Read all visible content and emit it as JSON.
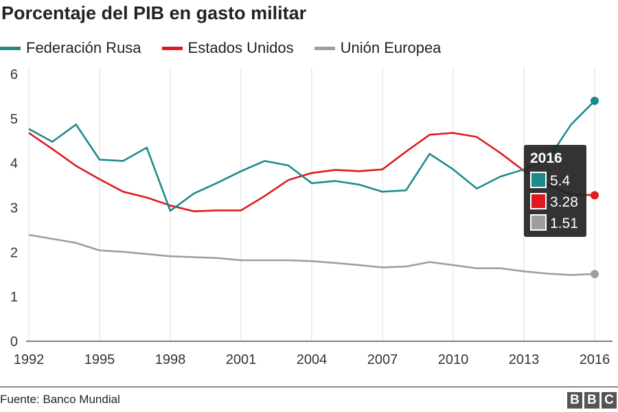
{
  "chart_data": {
    "type": "line",
    "title": "Porcentaje del PIB en gasto militar",
    "source": "Fuente: Banco Mundial",
    "logo": "BBC",
    "x_tick_labels": [
      "1992",
      "1995",
      "1998",
      "2001",
      "2004",
      "2007",
      "2010",
      "2013",
      "2016"
    ],
    "y_tick_labels": [
      "0",
      "1",
      "2",
      "3",
      "4",
      "5",
      "6"
    ],
    "xlim": [
      1992,
      2016
    ],
    "ylim": [
      0,
      6
    ],
    "grid": "vertical",
    "legend_position": "top",
    "series": [
      {
        "name": "Federación Rusa",
        "color": "#1d8a8a",
        "x": [
          1992,
          1993,
          1994,
          1995,
          1996,
          1997,
          1998,
          1999,
          2000,
          2001,
          2002,
          2003,
          2004,
          2005,
          2006,
          2007,
          2008,
          2009,
          2010,
          2011,
          2012,
          2013,
          2014,
          2015,
          2016
        ],
        "values": [
          4.77,
          4.48,
          4.87,
          4.08,
          4.05,
          4.35,
          2.93,
          3.32,
          3.56,
          3.82,
          4.05,
          3.95,
          3.55,
          3.6,
          3.52,
          3.36,
          3.39,
          4.21,
          3.86,
          3.43,
          3.7,
          3.86,
          4.07,
          4.87,
          5.4
        ]
      },
      {
        "name": "Estados Unidos",
        "color": "#e0191d",
        "x": [
          1992,
          1993,
          1994,
          1995,
          1996,
          1997,
          1998,
          1999,
          2000,
          2001,
          2002,
          2003,
          2004,
          2005,
          2006,
          2007,
          2008,
          2009,
          2010,
          2011,
          2012,
          2013,
          2014,
          2015,
          2016
        ],
        "values": [
          4.68,
          4.32,
          3.94,
          3.64,
          3.36,
          3.23,
          3.05,
          2.92,
          2.94,
          2.94,
          3.26,
          3.62,
          3.78,
          3.85,
          3.82,
          3.86,
          4.26,
          4.64,
          4.68,
          4.59,
          4.23,
          3.83,
          3.52,
          3.3,
          3.28
        ]
      },
      {
        "name": "Unión Europea",
        "color": "#9e9e9e",
        "x": [
          1992,
          1993,
          1994,
          1995,
          1996,
          1997,
          1998,
          1999,
          2000,
          2001,
          2002,
          2003,
          2004,
          2005,
          2006,
          2007,
          2008,
          2009,
          2010,
          2011,
          2012,
          2013,
          2014,
          2015,
          2016
        ],
        "values": [
          2.39,
          2.3,
          2.21,
          2.04,
          2.01,
          1.96,
          1.91,
          1.89,
          1.87,
          1.82,
          1.82,
          1.82,
          1.8,
          1.76,
          1.71,
          1.66,
          1.68,
          1.78,
          1.71,
          1.64,
          1.64,
          1.57,
          1.52,
          1.49,
          1.51
        ]
      }
    ],
    "tooltip": {
      "year": "2016",
      "values": [
        "5.4",
        "3.28",
        "1.51"
      ]
    }
  }
}
